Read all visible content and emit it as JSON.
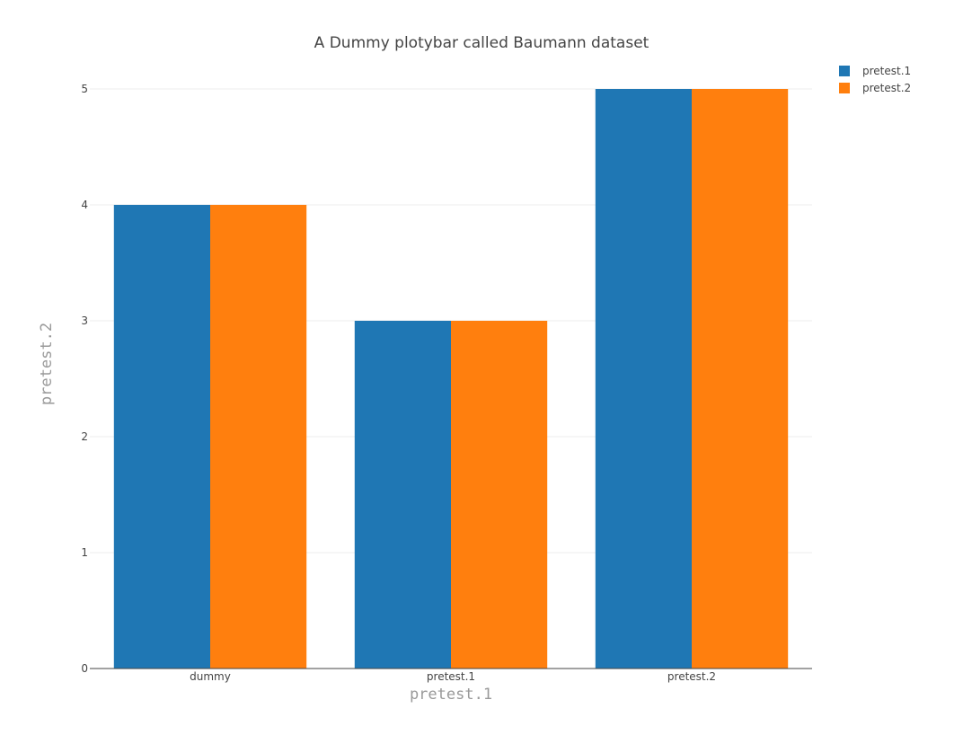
{
  "chart_data": {
    "type": "bar",
    "title": "A Dummy plotybar called Baumann dataset",
    "xlabel": "pretest.1",
    "ylabel": "pretest.2",
    "categories": [
      "dummy",
      "pretest.1",
      "pretest.2"
    ],
    "series": [
      {
        "name": "pretest.1",
        "values": [
          4,
          3,
          5
        ],
        "color": "#1f77b4"
      },
      {
        "name": "pretest.2",
        "values": [
          4,
          3,
          5
        ],
        "color": "#ff7f0e"
      }
    ],
    "ylim": [
      0,
      5
    ],
    "yticks": [
      0,
      1,
      2,
      3,
      4,
      5
    ],
    "grid": true,
    "legend_position": "top-right"
  }
}
